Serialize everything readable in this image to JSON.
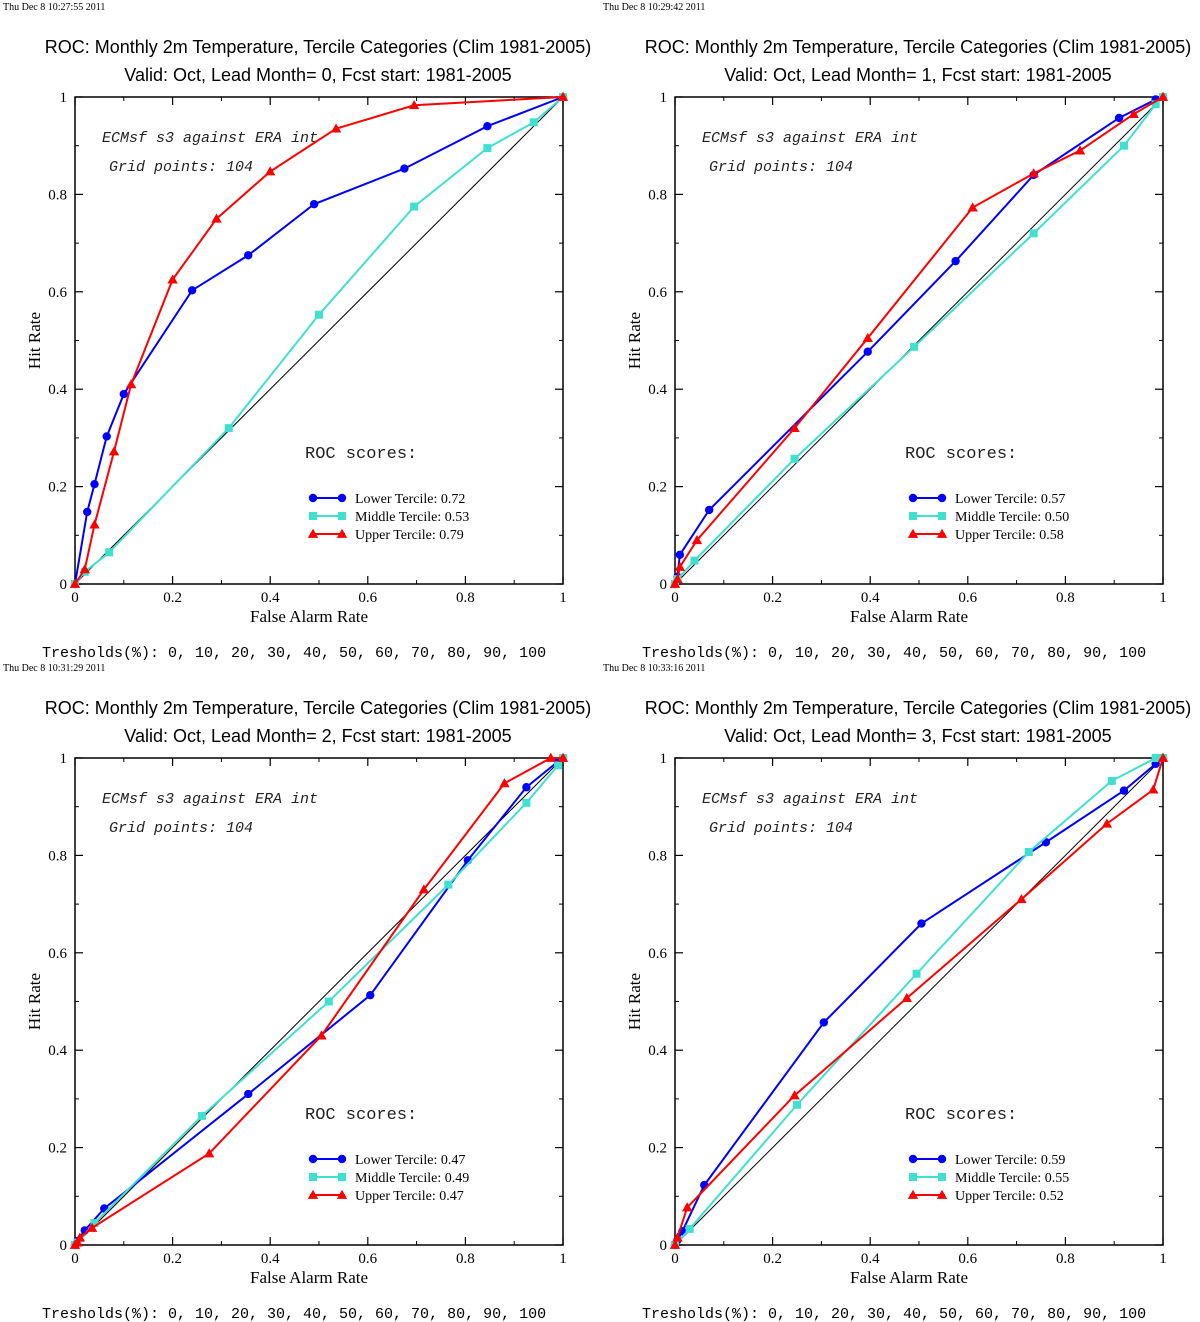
{
  "colors": {
    "lower": "#0000ff",
    "middle": "#40e0d0",
    "upper": "#ff0000",
    "diagonal": "#000000"
  },
  "chart_data": [
    {
      "type": "line",
      "timestamp": "Thu Dec  8 10:27:55 2011",
      "title": "ROC: Monthly 2m Temperature, Tercile Categories (Clim 1981-2005)",
      "subtitle": "Valid: Oct, Lead Month= 0, Fcst start: 1981-2005",
      "xlabel": "False Alarm Rate",
      "ylabel": "Hit Rate",
      "xlim": [
        0,
        1
      ],
      "ylim": [
        0,
        1
      ],
      "x_ticks": [
        "0",
        "0.2",
        "0.4",
        "0.6",
        "0.8",
        "1"
      ],
      "y_ticks": [
        "0",
        "0.2",
        "0.4",
        "0.6",
        "0.8",
        "1"
      ],
      "annotation_1": "ECMsf s3 against ERA int",
      "annotation_2": "Grid points:  104",
      "roc_heading": "ROC scores:",
      "thresholds": "Tresholds(%): 0, 10, 20, 30, 40, 50, 60, 70, 80, 90, 100",
      "series": [
        {
          "name": "Lower Tercile: 0.72",
          "color": "lower",
          "marker": "circle",
          "points": [
            [
              0,
              0
            ],
            [
              0.025,
              0.148
            ],
            [
              0.04,
              0.205
            ],
            [
              0.065,
              0.303
            ],
            [
              0.1,
              0.39
            ],
            [
              0.24,
              0.603
            ],
            [
              0.355,
              0.675
            ],
            [
              0.49,
              0.78
            ],
            [
              0.675,
              0.853
            ],
            [
              0.845,
              0.94
            ],
            [
              1,
              1
            ]
          ]
        },
        {
          "name": "Middle Tercile: 0.53",
          "color": "middle",
          "marker": "square",
          "points": [
            [
              0,
              0
            ],
            [
              0.02,
              0.025
            ],
            [
              0.07,
              0.065
            ],
            [
              0.315,
              0.32
            ],
            [
              0.5,
              0.553
            ],
            [
              0.695,
              0.775
            ],
            [
              0.845,
              0.895
            ],
            [
              0.94,
              0.948
            ],
            [
              1,
              1
            ]
          ]
        },
        {
          "name": "Upper Tercile: 0.79",
          "color": "upper",
          "marker": "triangle",
          "points": [
            [
              0,
              0
            ],
            [
              0.02,
              0.03
            ],
            [
              0.04,
              0.122
            ],
            [
              0.08,
              0.272
            ],
            [
              0.115,
              0.41
            ],
            [
              0.2,
              0.625
            ],
            [
              0.29,
              0.75
            ],
            [
              0.4,
              0.847
            ],
            [
              0.535,
              0.935
            ],
            [
              0.695,
              0.983
            ],
            [
              1,
              1
            ]
          ]
        }
      ]
    },
    {
      "type": "line",
      "timestamp": "Thu Dec  8 10:29:42 2011",
      "title": "ROC: Monthly 2m Temperature, Tercile Categories (Clim 1981-2005)",
      "subtitle": "Valid: Oct, Lead Month= 1, Fcst start: 1981-2005",
      "xlabel": "False Alarm Rate",
      "ylabel": "Hit Rate",
      "xlim": [
        0,
        1
      ],
      "ylim": [
        0,
        1
      ],
      "x_ticks": [
        "0",
        "0.2",
        "0.4",
        "0.6",
        "0.8",
        "1"
      ],
      "y_ticks": [
        "0",
        "0.2",
        "0.4",
        "0.6",
        "0.8",
        "1"
      ],
      "annotation_1": "ECMsf s3 against ERA int",
      "annotation_2": "Grid points:  104",
      "roc_heading": "ROC scores:",
      "thresholds": "Tresholds(%): 0, 10, 20, 30, 40, 50, 60, 70, 80, 90, 100",
      "series": [
        {
          "name": "Lower Tercile: 0.57",
          "color": "lower",
          "marker": "circle",
          "points": [
            [
              0,
              0
            ],
            [
              0.005,
              0.015
            ],
            [
              0.01,
              0.06
            ],
            [
              0.07,
              0.152
            ],
            [
              0.395,
              0.477
            ],
            [
              0.575,
              0.663
            ],
            [
              0.735,
              0.84
            ],
            [
              0.91,
              0.957
            ],
            [
              0.985,
              0.995
            ],
            [
              1,
              1
            ]
          ]
        },
        {
          "name": "Middle Tercile: 0.50",
          "color": "middle",
          "marker": "square",
          "points": [
            [
              0,
              0
            ],
            [
              0.005,
              0.01
            ],
            [
              0.04,
              0.048
            ],
            [
              0.245,
              0.257
            ],
            [
              0.49,
              0.487
            ],
            [
              0.735,
              0.72
            ],
            [
              0.92,
              0.9
            ],
            [
              0.985,
              0.985
            ],
            [
              1,
              1
            ]
          ]
        },
        {
          "name": "Upper Tercile: 0.58",
          "color": "upper",
          "marker": "triangle",
          "points": [
            [
              0,
              0
            ],
            [
              0.005,
              0.01
            ],
            [
              0.01,
              0.035
            ],
            [
              0.045,
              0.09
            ],
            [
              0.245,
              0.32
            ],
            [
              0.395,
              0.505
            ],
            [
              0.61,
              0.773
            ],
            [
              0.735,
              0.843
            ],
            [
              0.83,
              0.89
            ],
            [
              0.94,
              0.965
            ],
            [
              1,
              1
            ]
          ]
        }
      ]
    },
    {
      "type": "line",
      "timestamp": "Thu Dec  8 10:31:29 2011",
      "title": "ROC: Monthly 2m Temperature, Tercile Categories (Clim 1981-2005)",
      "subtitle": "Valid: Oct, Lead Month= 2, Fcst start: 1981-2005",
      "xlabel": "False Alarm Rate",
      "ylabel": "Hit Rate",
      "xlim": [
        0,
        1
      ],
      "ylim": [
        0,
        1
      ],
      "x_ticks": [
        "0",
        "0.2",
        "0.4",
        "0.6",
        "0.8",
        "1"
      ],
      "y_ticks": [
        "0",
        "0.2",
        "0.4",
        "0.6",
        "0.8",
        "1"
      ],
      "annotation_1": "ECMsf s3 against ERA int",
      "annotation_2": "Grid points:  104",
      "roc_heading": "ROC scores:",
      "thresholds": "Tresholds(%): 0, 10, 20, 30, 40, 50, 60, 70, 80, 90, 100",
      "series": [
        {
          "name": "Lower Tercile: 0.47",
          "color": "lower",
          "marker": "circle",
          "points": [
            [
              0,
              0
            ],
            [
              0.005,
              0.008
            ],
            [
              0.02,
              0.03
            ],
            [
              0.06,
              0.075
            ],
            [
              0.355,
              0.31
            ],
            [
              0.605,
              0.513
            ],
            [
              0.805,
              0.79
            ],
            [
              0.925,
              0.94
            ],
            [
              0.99,
              0.993
            ],
            [
              1,
              1
            ]
          ]
        },
        {
          "name": "Middle Tercile: 0.49",
          "color": "middle",
          "marker": "square",
          "points": [
            [
              0,
              0
            ],
            [
              0.005,
              0.005
            ],
            [
              0.04,
              0.045
            ],
            [
              0.26,
              0.265
            ],
            [
              0.52,
              0.5
            ],
            [
              0.765,
              0.74
            ],
            [
              0.925,
              0.908
            ],
            [
              0.99,
              0.985
            ],
            [
              1,
              1
            ]
          ]
        },
        {
          "name": "Upper Tercile: 0.47",
          "color": "upper",
          "marker": "triangle",
          "points": [
            [
              0,
              0
            ],
            [
              0.005,
              0.005
            ],
            [
              0.01,
              0.015
            ],
            [
              0.035,
              0.035
            ],
            [
              0.275,
              0.188
            ],
            [
              0.505,
              0.43
            ],
            [
              0.715,
              0.73
            ],
            [
              0.88,
              0.948
            ],
            [
              0.975,
              1
            ],
            [
              1,
              1
            ]
          ]
        }
      ]
    },
    {
      "type": "line",
      "timestamp": "Thu Dec  8 10:33:16 2011",
      "title": "ROC: Monthly 2m Temperature, Tercile Categories (Clim 1981-2005)",
      "subtitle": "Valid: Oct, Lead Month= 3, Fcst start: 1981-2005",
      "xlabel": "False Alarm Rate",
      "ylabel": "Hit Rate",
      "xlim": [
        0,
        1
      ],
      "ylim": [
        0,
        1
      ],
      "x_ticks": [
        "0",
        "0.2",
        "0.4",
        "0.6",
        "0.8",
        "1"
      ],
      "y_ticks": [
        "0",
        "0.2",
        "0.4",
        "0.6",
        "0.8",
        "1"
      ],
      "annotation_1": "ECMsf s3 against ERA int",
      "annotation_2": "Grid points:  104",
      "roc_heading": "ROC scores:",
      "thresholds": "Tresholds(%): 0, 10, 20, 30, 40, 50, 60, 70, 80, 90, 100",
      "series": [
        {
          "name": "Lower Tercile: 0.59",
          "color": "lower",
          "marker": "circle",
          "points": [
            [
              0,
              0
            ],
            [
              0.005,
              0.01
            ],
            [
              0.015,
              0.028
            ],
            [
              0.06,
              0.123
            ],
            [
              0.305,
              0.457
            ],
            [
              0.505,
              0.66
            ],
            [
              0.76,
              0.827
            ],
            [
              0.92,
              0.933
            ],
            [
              0.985,
              0.988
            ],
            [
              1,
              1
            ]
          ]
        },
        {
          "name": "Middle Tercile: 0.55",
          "color": "middle",
          "marker": "square",
          "points": [
            [
              0,
              0
            ],
            [
              0.03,
              0.033
            ],
            [
              0.25,
              0.288
            ],
            [
              0.495,
              0.557
            ],
            [
              0.725,
              0.807
            ],
            [
              0.895,
              0.953
            ],
            [
              0.985,
              1
            ],
            [
              1,
              1
            ]
          ]
        },
        {
          "name": "Upper Tercile: 0.52",
          "color": "upper",
          "marker": "triangle",
          "points": [
            [
              0,
              0
            ],
            [
              0.005,
              0.015
            ],
            [
              0.025,
              0.077
            ],
            [
              0.245,
              0.307
            ],
            [
              0.475,
              0.507
            ],
            [
              0.71,
              0.71
            ],
            [
              0.885,
              0.865
            ],
            [
              0.98,
              0.935
            ],
            [
              1,
              1
            ]
          ]
        }
      ]
    }
  ]
}
